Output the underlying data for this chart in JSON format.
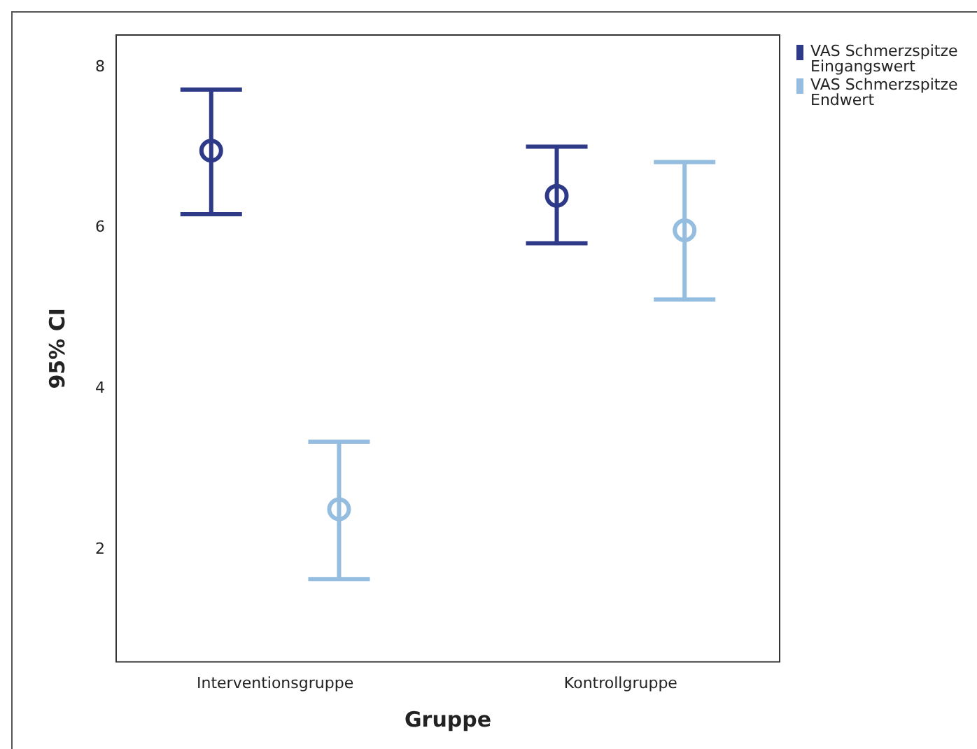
{
  "chart_data": {
    "type": "scatter",
    "xlabel": "Gruppe",
    "ylabel": "95% CI",
    "categories": [
      "Interventionsgruppe",
      "Kontrollgruppe"
    ],
    "series": [
      {
        "name": "VAS Schmerzspitze Eingangswert",
        "color": "#2e3a87",
        "values": [
          6.96,
          6.4
        ],
        "errors": [
          [
            6.17,
            7.72
          ],
          [
            5.81,
            7.01
          ]
        ]
      },
      {
        "name": "VAS Schmerzspitze Endwert",
        "color": "#94bde0",
        "values": [
          2.5,
          5.97
        ],
        "errors": [
          [
            1.63,
            3.34
          ],
          [
            5.11,
            6.82
          ]
        ]
      }
    ],
    "ylim": [
      0.6,
      8.4
    ],
    "yticks": [
      2,
      4,
      6,
      8
    ],
    "marker": "circle",
    "legend": "top right"
  }
}
